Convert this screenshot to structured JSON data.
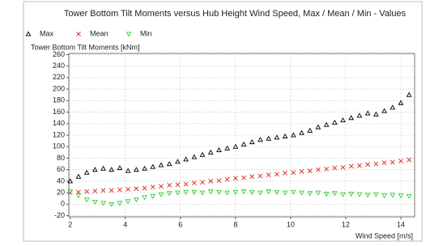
{
  "chart_data": {
    "type": "scatter",
    "title": "Tower Bottom Tilt Moments versus Hub Height Wind Speed, Max / Mean / Min - Values",
    "y_label": "Tower Bottom Tilt Moments [kNm]",
    "x_label": "Wind Speed [m/s]",
    "x": [
      2.0,
      2.3,
      2.6,
      2.9,
      3.2,
      3.5,
      3.8,
      4.1,
      4.4,
      4.7,
      5.0,
      5.3,
      5.6,
      5.9,
      6.2,
      6.5,
      6.8,
      7.1,
      7.4,
      7.7,
      8.0,
      8.3,
      8.6,
      8.9,
      9.2,
      9.5,
      9.8,
      10.1,
      10.4,
      10.7,
      11.0,
      11.3,
      11.6,
      11.9,
      12.2,
      12.5,
      12.8,
      13.1,
      13.4,
      13.7,
      14.0,
      14.3
    ],
    "series": [
      {
        "name": "Max",
        "color": "#000000",
        "marker": "triangle",
        "values": [
          40,
          48,
          55,
          60,
          62,
          60,
          63,
          58,
          60,
          62,
          65,
          68,
          70,
          74,
          78,
          82,
          86,
          90,
          94,
          97,
          100,
          104,
          108,
          112,
          114,
          116,
          118,
          120,
          124,
          128,
          134,
          138,
          142,
          146,
          150,
          154,
          158,
          156,
          162,
          168,
          176,
          190
        ]
      },
      {
        "name": "Mean",
        "color": "#e02020",
        "marker": "cross",
        "values": [
          20,
          21,
          22,
          23,
          24,
          24,
          25,
          26,
          27,
          28,
          30,
          31,
          33,
          34,
          35,
          37,
          38,
          40,
          41,
          43,
          45,
          46,
          48,
          49,
          51,
          52,
          54,
          55,
          57,
          58,
          60,
          61,
          63,
          64,
          66,
          67,
          69,
          70,
          72,
          73,
          75,
          77
        ]
      },
      {
        "name": "Min",
        "color": "#30d030",
        "marker": "tri_down",
        "values": [
          22,
          15,
          8,
          4,
          2,
          0,
          2,
          5,
          8,
          12,
          14,
          17,
          19,
          20,
          21,
          21,
          20,
          22,
          21,
          20,
          21,
          22,
          21,
          20,
          22,
          21,
          20,
          21,
          20,
          19,
          20,
          18,
          19,
          17,
          18,
          17,
          16,
          17,
          15,
          16,
          15,
          14
        ]
      }
    ],
    "xlim": [
      1.95,
      14.5
    ],
    "ylim": [
      -22,
      262
    ],
    "xticks": [
      2,
      4,
      6,
      8,
      10,
      12,
      14
    ],
    "yticks": [
      -20,
      0,
      20,
      40,
      60,
      80,
      100,
      120,
      140,
      160,
      180,
      200,
      220,
      240,
      260
    ],
    "grid": true
  }
}
